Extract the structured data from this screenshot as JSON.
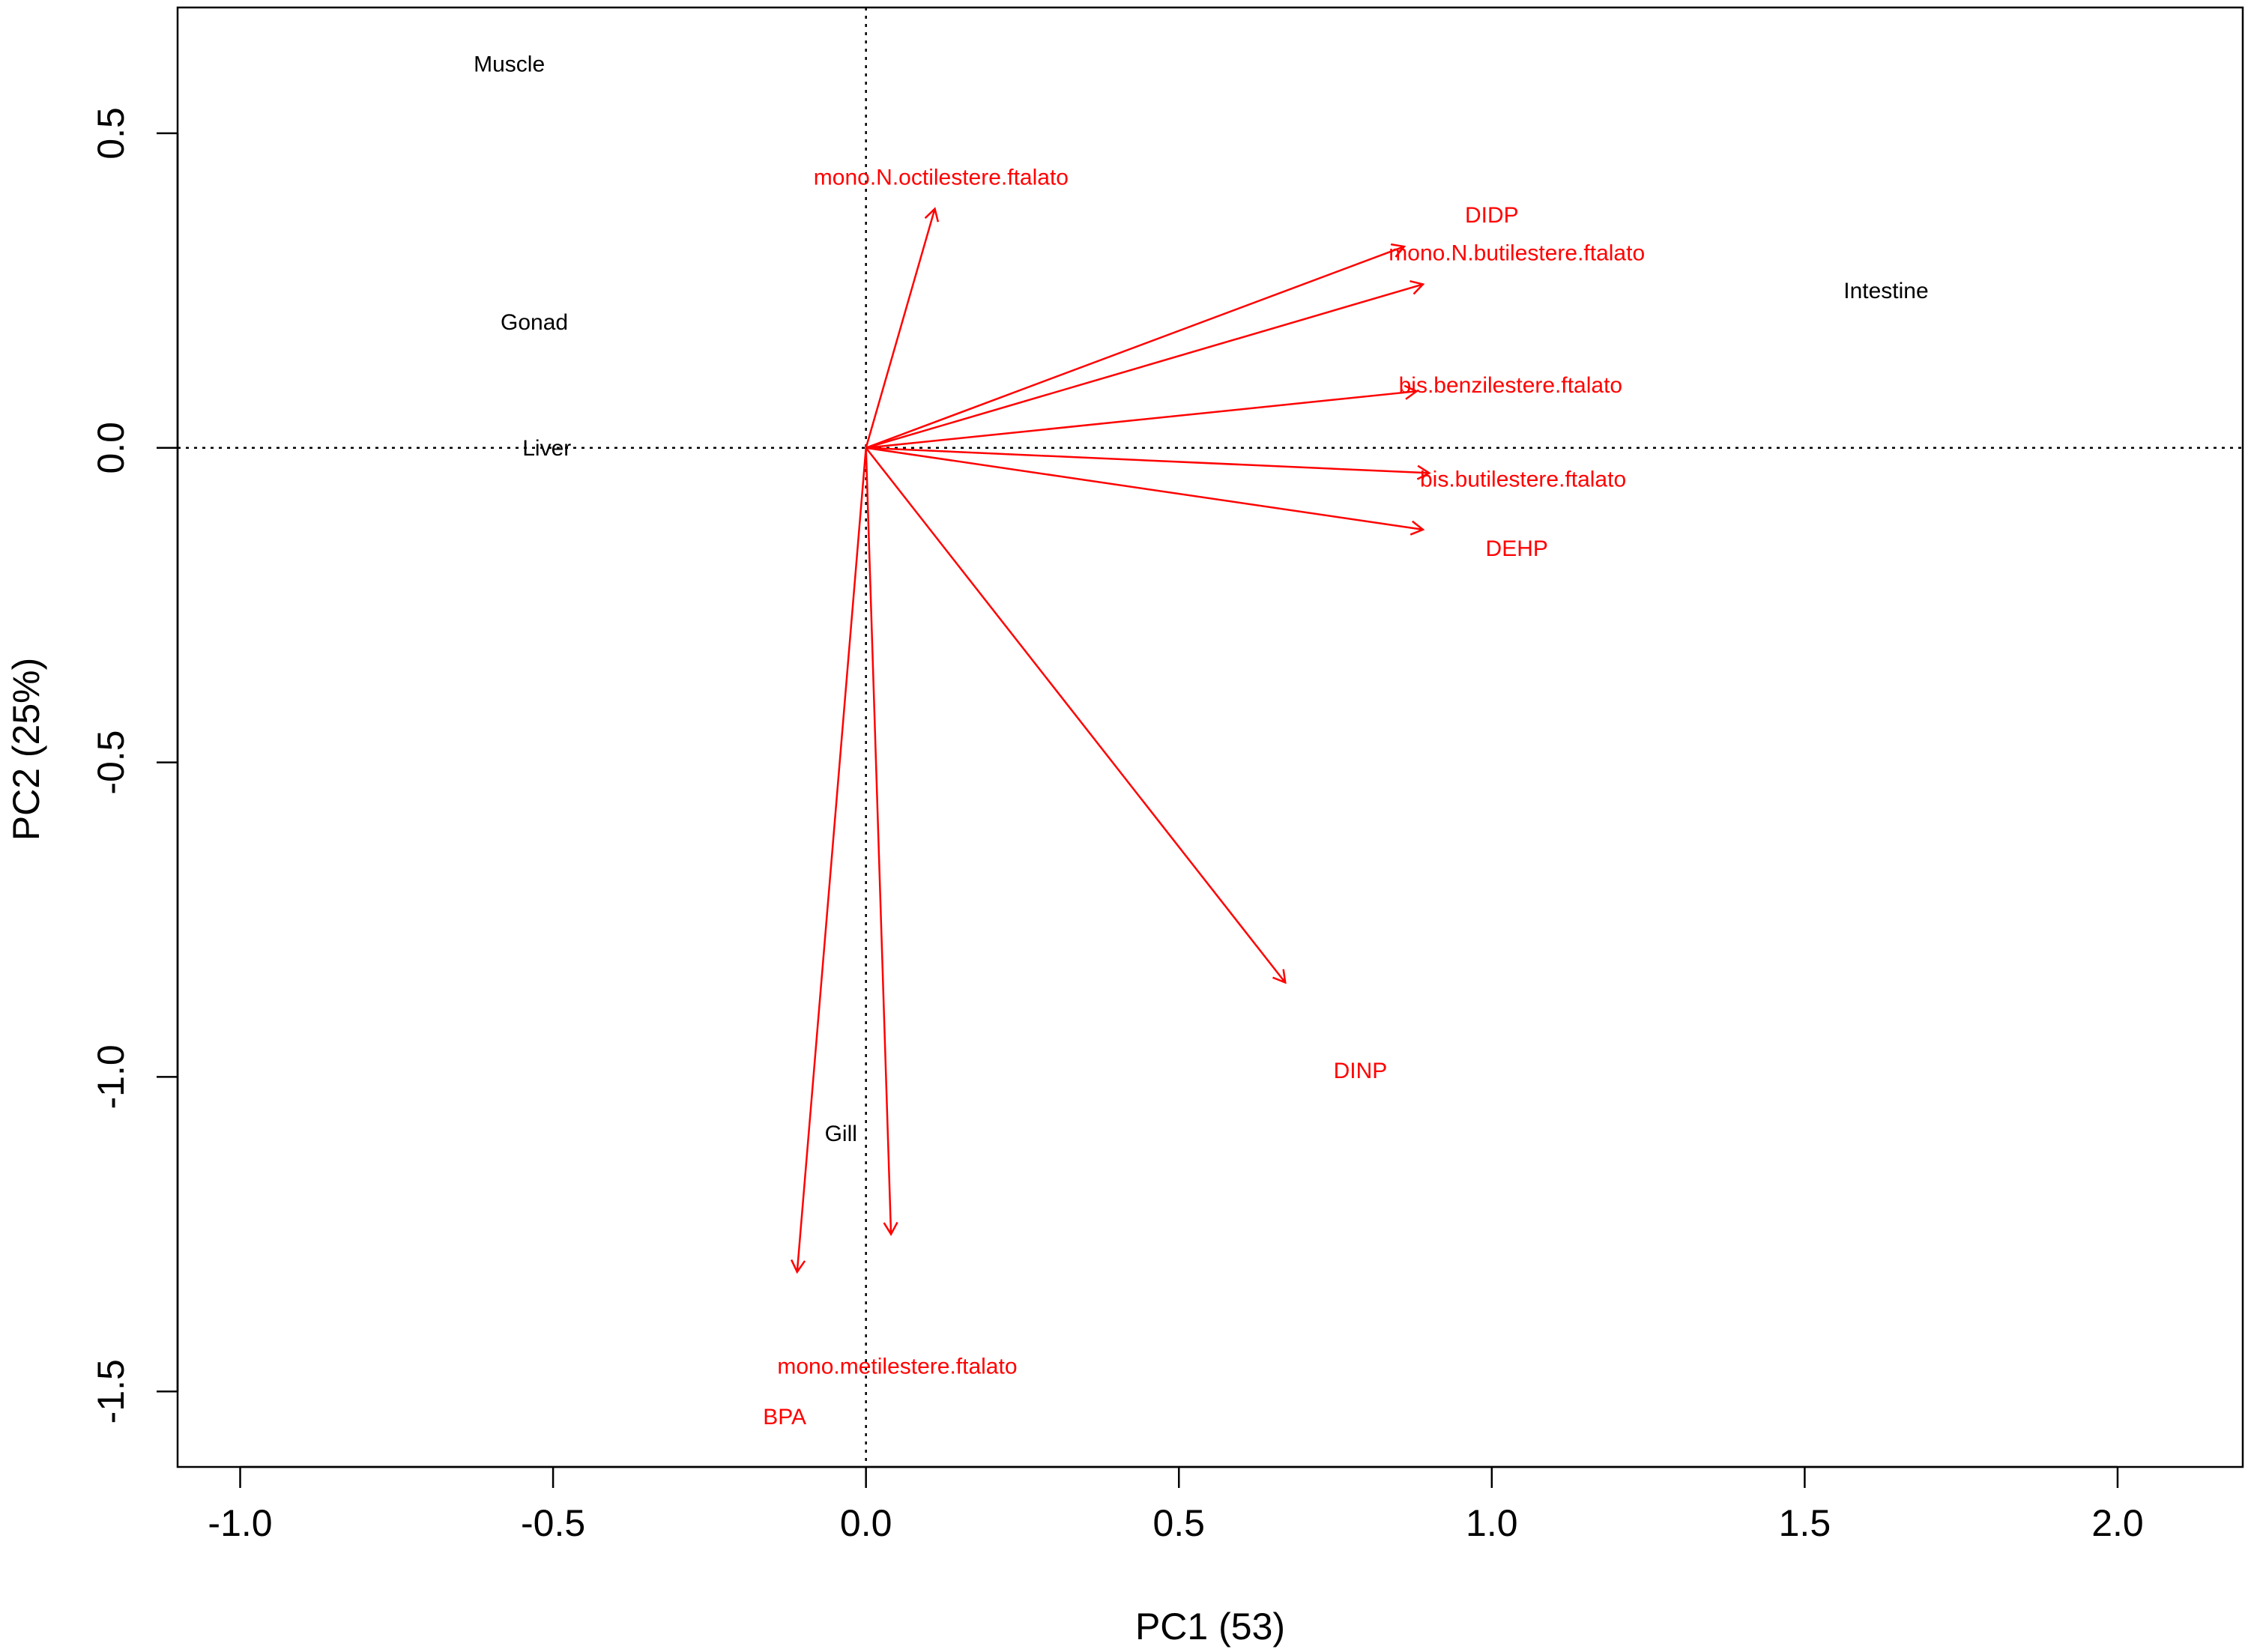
{
  "chart_data": {
    "type": "scatter",
    "subtype": "pca-biplot",
    "title": "",
    "xlabel": "PC1 (53)",
    "ylabel": "PC2 (25%)",
    "xlim": [
      -1.1,
      2.2
    ],
    "ylim": [
      -1.62,
      0.7
    ],
    "xticks": [
      -1.0,
      -0.5,
      0.0,
      0.5,
      1.0,
      1.5,
      2.0
    ],
    "xtick_labels": [
      "-1.0",
      "-0.5",
      "0.0",
      "0.5",
      "1.0",
      "1.5",
      "2.0"
    ],
    "yticks": [
      0.5,
      0.0,
      -0.5,
      -1.0,
      -1.5
    ],
    "ytick_labels": [
      "0.5",
      "0.0",
      "-0.5",
      "-1.0",
      "-1.5"
    ],
    "reference_lines": {
      "x": 0,
      "y": 0,
      "style": "dotted"
    },
    "grid": false,
    "arrow_color": "#ff0000",
    "sample_color": "#000000",
    "samples": [
      {
        "name": "Muscle",
        "x": -0.57,
        "y": 0.61
      },
      {
        "name": "Gonad",
        "x": -0.53,
        "y": 0.2
      },
      {
        "name": "Liver",
        "x": -0.51,
        "y": 0.0
      },
      {
        "name": "Intestine",
        "x": 1.63,
        "y": 0.25
      },
      {
        "name": "Gill",
        "x": -0.04,
        "y": -1.09
      }
    ],
    "variables": [
      {
        "name": "mono.N.octilestere.ftalato",
        "x": 0.11,
        "y": 0.38,
        "label_x": 0.12,
        "label_y": 0.43
      },
      {
        "name": "DIDP",
        "x": 0.86,
        "y": 0.32,
        "label_x": 1.0,
        "label_y": 0.37
      },
      {
        "name": "mono.N.butilestere.ftalato",
        "x": 0.89,
        "y": 0.26,
        "label_x": 1.04,
        "label_y": 0.31
      },
      {
        "name": "bis.benzilestere.ftalato",
        "x": 0.88,
        "y": 0.09,
        "label_x": 1.03,
        "label_y": 0.1
      },
      {
        "name": "bis.butilestere.ftalato",
        "x": 0.9,
        "y": -0.04,
        "label_x": 1.05,
        "label_y": -0.05
      },
      {
        "name": "DEHP",
        "x": 0.89,
        "y": -0.13,
        "label_x": 1.04,
        "label_y": -0.16
      },
      {
        "name": "DINP",
        "x": 0.67,
        "y": -0.85,
        "label_x": 0.79,
        "label_y": -0.99
      },
      {
        "name": "mono.metilestere.ftalato",
        "x": 0.04,
        "y": -1.25,
        "label_x": 0.05,
        "label_y": -1.46
      },
      {
        "name": "BPA",
        "x": -0.11,
        "y": -1.31,
        "label_x": -0.13,
        "label_y": -1.54
      }
    ]
  }
}
